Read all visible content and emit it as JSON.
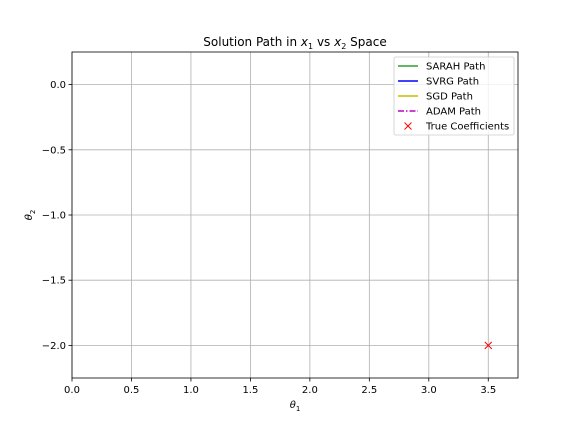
{
  "chart_data": {
    "type": "line",
    "title": {
      "pre": "Solution Path in ",
      "var1": "x",
      "sub1": "1",
      "mid": " vs ",
      "var2": "x",
      "sub2": "2",
      "post": " Space"
    },
    "xlabel": {
      "symbol": "θ",
      "sub": "1"
    },
    "ylabel": {
      "symbol": "θ",
      "sub": "2"
    },
    "xlim": [
      0.0,
      3.75
    ],
    "ylim": [
      -2.25,
      0.25
    ],
    "xticks": [
      0.0,
      0.5,
      1.0,
      1.5,
      2.0,
      2.5,
      3.0,
      3.5
    ],
    "xtick_labels": [
      "0.0",
      "0.5",
      "1.0",
      "1.5",
      "2.0",
      "2.5",
      "3.0",
      "3.5"
    ],
    "yticks": [
      0.0,
      -0.5,
      -1.0,
      -1.5,
      -2.0
    ],
    "ytick_labels": [
      "0.0",
      "−0.5",
      "−1.0",
      "−1.5",
      "−2.0"
    ],
    "grid": true,
    "legend_position": "top-right",
    "series": [
      {
        "name": "SARAH Path",
        "color": "#2ca02c",
        "style": "solid",
        "points": []
      },
      {
        "name": "SVRG Path",
        "color": "#0000ff",
        "style": "solid",
        "points": []
      },
      {
        "name": "SGD Path",
        "color": "#bfbf00",
        "style": "solid",
        "points": []
      },
      {
        "name": "ADAM Path",
        "color": "#bf00bf",
        "style": "dashdot",
        "points": []
      }
    ],
    "markers": [
      {
        "name": "True Coefficients",
        "color": "#ff0000",
        "symbol": "x",
        "x": 3.5,
        "y": -2.0
      }
    ]
  }
}
